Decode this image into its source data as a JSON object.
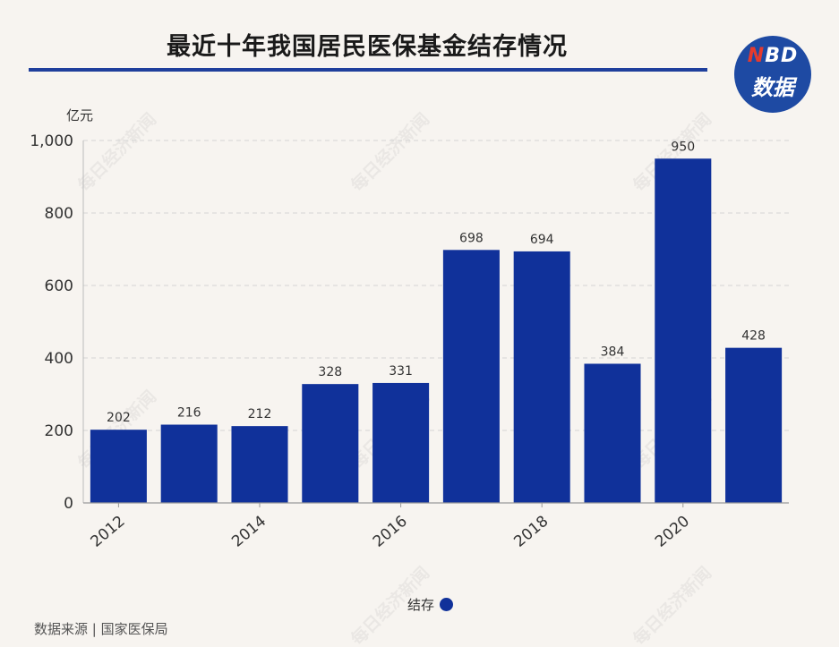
{
  "title": "最近十年我国居民医保基金结存情况",
  "logo": {
    "line1_accent": "N",
    "line1_rest": "BD",
    "line2": "数据"
  },
  "source": "数据来源 | 国家医保局",
  "legend": {
    "label": "结存"
  },
  "watermark": "每日经济新闻",
  "colors": {
    "bar": "#10319a",
    "accent": "#1f3f9c",
    "logo_bg": "#1e4aa3",
    "logo_red": "#e63b2e"
  },
  "chart_data": {
    "type": "bar",
    "x_labels": [
      "2012",
      "2014",
      "2016",
      "2018",
      "2020"
    ],
    "categories": [
      "2012",
      "2013",
      "2014",
      "2015",
      "2016",
      "2017",
      "2018",
      "2019",
      "2020",
      "2021"
    ],
    "series": [
      {
        "name": "结存",
        "values": [
          202,
          216,
          212,
          328,
          331,
          698,
          694,
          384,
          950,
          428
        ]
      }
    ],
    "ylabel": "亿元",
    "ylim": [
      0,
      1000
    ],
    "yticks": [
      0,
      200,
      400,
      600,
      800,
      1000
    ],
    "ytick_labels": [
      "0",
      "200",
      "400",
      "600",
      "800",
      "1,000"
    ],
    "grid": true,
    "legend_position": "bottom"
  }
}
